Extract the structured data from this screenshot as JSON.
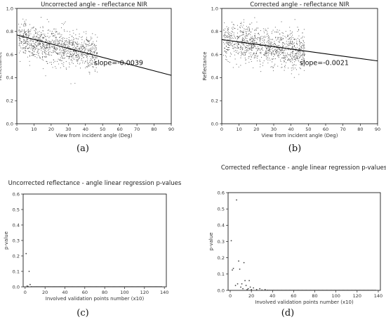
{
  "captions": [
    "(a)",
    "(b)",
    "(c)",
    "(d)"
  ],
  "chart_data": [
    {
      "id": "a",
      "type": "scatter",
      "title": "Uncorrected angle - reflectance NIR",
      "xlabel": "View from incident angle (Deg)",
      "ylabel": "Reflectance",
      "xlim": [
        0,
        90
      ],
      "ylim": [
        0.0,
        1.0
      ],
      "xticks": [
        0,
        10,
        20,
        30,
        40,
        50,
        60,
        70,
        80,
        90
      ],
      "yticks": [
        0.0,
        0.2,
        0.4,
        0.6,
        0.8,
        1.0
      ],
      "ytick_labels": [
        "0.0",
        "0.2",
        "0.4",
        "0.6",
        "0.8",
        "1.0"
      ],
      "point_cloud": {
        "x_range": [
          1,
          47
        ],
        "y_center_start": 0.74,
        "y_center_end": 0.6,
        "y_spread": 0.13,
        "n": 1100
      },
      "regression_line": {
        "x": [
          0,
          90
        ],
        "y": [
          0.77,
          0.42
        ]
      },
      "annotation": {
        "text": "slope=-0.0039",
        "x": 45,
        "y": 0.51
      }
    },
    {
      "id": "b",
      "type": "scatter",
      "title": "Corrected angle - reflectance NIR",
      "xlabel": "View from incident angle (Deg)",
      "ylabel": "Reflectance",
      "xlim": [
        0,
        90
      ],
      "ylim": [
        0.0,
        1.0
      ],
      "xticks": [
        0,
        10,
        20,
        30,
        40,
        50,
        60,
        70,
        80,
        90
      ],
      "yticks": [
        0.0,
        0.2,
        0.4,
        0.6,
        0.8,
        1.0
      ],
      "ytick_labels": [
        "0.0",
        "0.2",
        "0.4",
        "0.6",
        "0.8",
        "1.0"
      ],
      "point_cloud": {
        "x_range": [
          1,
          48
        ],
        "y_center_start": 0.72,
        "y_center_end": 0.62,
        "y_spread": 0.14,
        "n": 1100
      },
      "regression_line": {
        "x": [
          0,
          90
        ],
        "y": [
          0.73,
          0.545
        ]
      },
      "annotation": {
        "text": "slope=-0.0021",
        "x": 45,
        "y": 0.51
      }
    },
    {
      "id": "c",
      "type": "scatter",
      "title": "Uncorrected reflectance - angle linear regression p-values",
      "xlabel": "Involved validation points number (x10)",
      "ylabel": "p-value",
      "xlim": [
        -2,
        142
      ],
      "ylim": [
        0.0,
        0.6
      ],
      "xticks": [
        0,
        20,
        40,
        60,
        80,
        100,
        120,
        140
      ],
      "yticks": [
        0.0,
        0.1,
        0.2,
        0.3,
        0.4,
        0.5,
        0.6
      ],
      "ytick_labels": [
        "0.0",
        "0.1",
        "0.2",
        "0.3",
        "0.4",
        "0.5",
        "0.6"
      ],
      "points": {
        "x": [
          1,
          2,
          3,
          4,
          5,
          6
        ],
        "y": [
          0.215,
          0.005,
          0.002,
          0.1,
          0.015,
          0.001
        ]
      },
      "near_zero_x_range": [
        7,
        138
      ]
    },
    {
      "id": "d",
      "type": "scatter",
      "title": "Corrected reflectance - angle linear regression p-values",
      "xlabel": "Involved validation points number (x10)",
      "ylabel": "p-value",
      "xlim": [
        -2,
        142
      ],
      "ylim": [
        0.0,
        0.6
      ],
      "xticks": [
        0,
        20,
        40,
        60,
        80,
        100,
        120,
        140
      ],
      "yticks": [
        0.0,
        0.1,
        0.2,
        0.3,
        0.4,
        0.5,
        0.6
      ],
      "ytick_labels": [
        "0.0",
        "0.1",
        "0.2",
        "0.3",
        "0.4",
        "0.5",
        "0.6"
      ],
      "points": {
        "x": [
          1,
          2,
          3,
          5,
          6,
          7,
          8,
          9,
          10,
          11,
          12,
          13,
          14,
          15,
          16,
          17,
          18,
          19,
          20,
          22,
          25,
          28,
          30,
          33,
          35
        ],
        "y": [
          0.305,
          0.125,
          0.135,
          0.03,
          0.555,
          0.04,
          0.18,
          0.13,
          0.02,
          0.04,
          0.01,
          0.17,
          0.06,
          0.03,
          0.005,
          0.01,
          0.06,
          0.02,
          0.005,
          0.015,
          0.005,
          0.01,
          0.002,
          0.005,
          0.001
        ]
      },
      "near_zero_x_range": [
        36,
        138
      ]
    }
  ]
}
